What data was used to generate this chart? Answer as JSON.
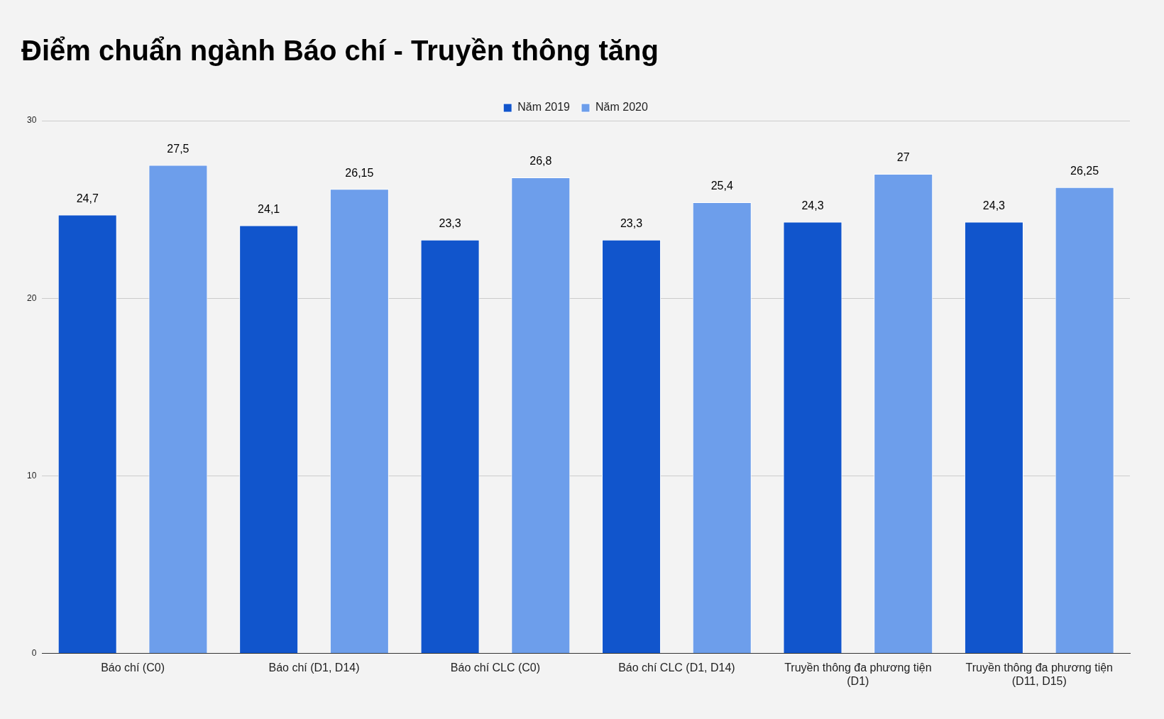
{
  "chart_data": {
    "type": "bar",
    "title": "Điểm chuẩn ngành Báo chí - Truyền thông tăng",
    "categories": [
      "Báo chí (C0)",
      "Báo chí (D1, D14)",
      "Báo chí CLC (C0)",
      "Báo chí CLC (D1, D14)",
      "Truyền thông đa phương tiện (D1)",
      "Truyền thông đa phương tiện (D11, D15)"
    ],
    "series": [
      {
        "name": "Năm 2019",
        "color": "#1155cc",
        "values": [
          24.7,
          24.1,
          23.3,
          23.3,
          24.3,
          24.3
        ],
        "value_labels": [
          "24,7",
          "24,1",
          "23,3",
          "23,3",
          "24,3",
          "24,3"
        ]
      },
      {
        "name": "Năm 2020",
        "color": "#6d9eeb",
        "values": [
          27.5,
          26.15,
          26.8,
          25.4,
          27,
          26.25
        ],
        "value_labels": [
          "27,5",
          "26,15",
          "26,8",
          "25,4",
          "27",
          "26,25"
        ]
      }
    ],
    "ylim": [
      0,
      30
    ],
    "yticks": [
      0,
      10,
      20,
      30
    ],
    "grid": "y",
    "legend": "top"
  }
}
